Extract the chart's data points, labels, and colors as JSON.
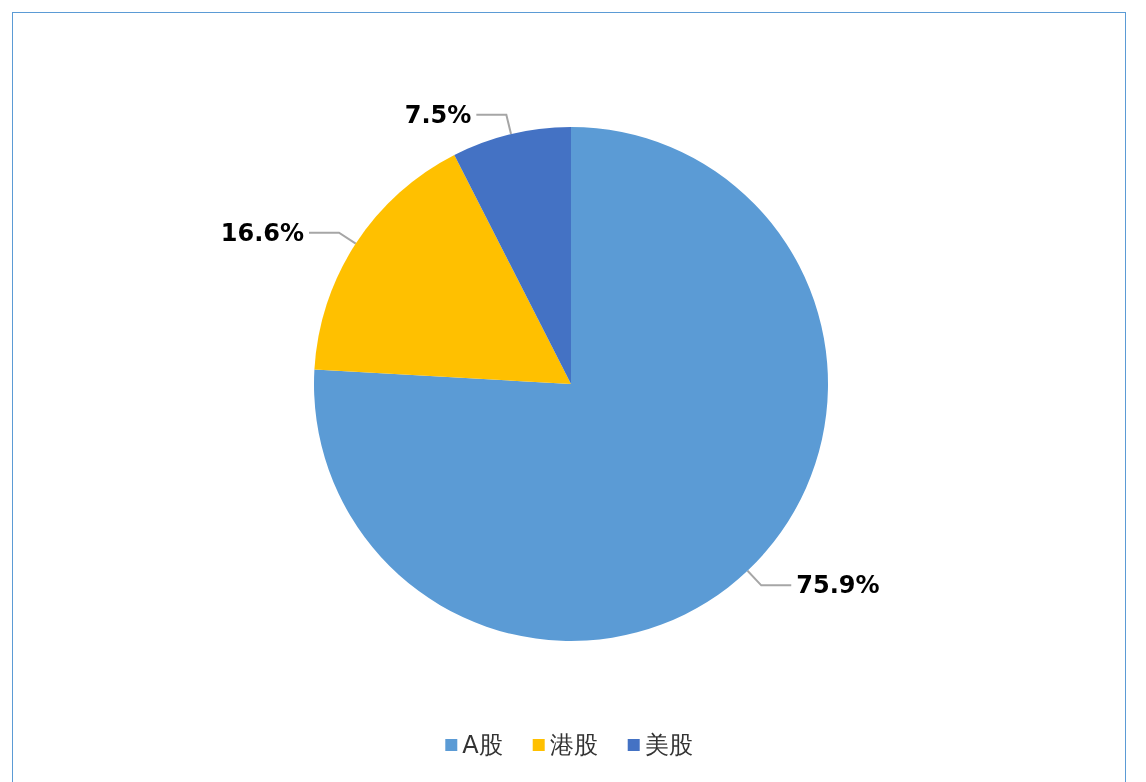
{
  "chart_data": {
    "type": "pie",
    "categories": [
      "A股",
      "港股",
      "美股"
    ],
    "values": [
      75.9,
      16.6,
      7.5
    ],
    "value_labels": [
      "75.9%",
      "16.6%",
      "7.5%"
    ],
    "colors": [
      "#5b9bd5",
      "#ffc000",
      "#4472c4"
    ],
    "legend": "bottom"
  }
}
